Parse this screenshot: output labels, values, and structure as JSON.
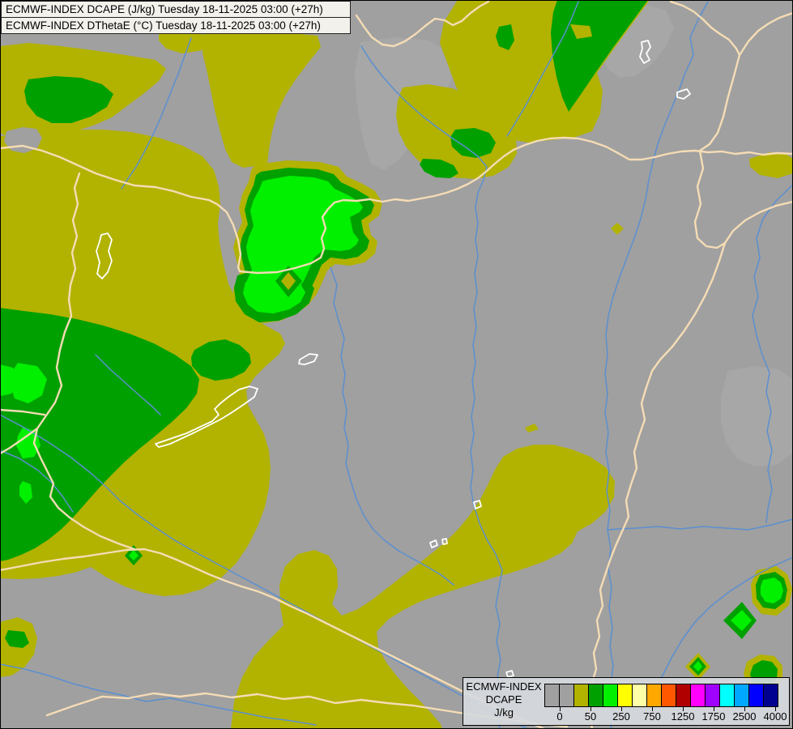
{
  "header": {
    "line1": "ECMWF-INDEX DCAPE (J/kg) Tuesday 18-11-2025 03:00 (+27h)",
    "line2": "ECMWF-INDEX DThetaE (°C) Tuesday 18-11-2025 03:00 (+27h)"
  },
  "legend": {
    "model": "ECMWF-INDEX",
    "parameter": "DCAPE",
    "units": "J/kg",
    "colors": [
      "#a0a0a0",
      "#a0a0a0",
      "#b2b200",
      "#00a000",
      "#00f000",
      "#ffff00",
      "#ffffa8",
      "#ffa800",
      "#ff5800",
      "#b00000",
      "#ff00ff",
      "#a000ff",
      "#00ffff",
      "#00a8ff",
      "#0000ff",
      "#000090"
    ],
    "tick_labels": [
      "0",
      "50",
      "250",
      "750",
      "1250",
      "1750",
      "2500",
      "4000"
    ],
    "tick_after_box": [
      1,
      3,
      5,
      7,
      9,
      11,
      13,
      15
    ]
  },
  "map": {
    "colors": {
      "background": "#a0a0a0",
      "background_light": "#a7a7a7",
      "olive_low_dcape": "#b2b200",
      "green_mid_dcape": "#00a000",
      "bright_green_high_dcape": "#00f000",
      "country_border": "#f5dcb5",
      "river": "#5b8fd0",
      "lake_outline": "#ffffff"
    }
  }
}
